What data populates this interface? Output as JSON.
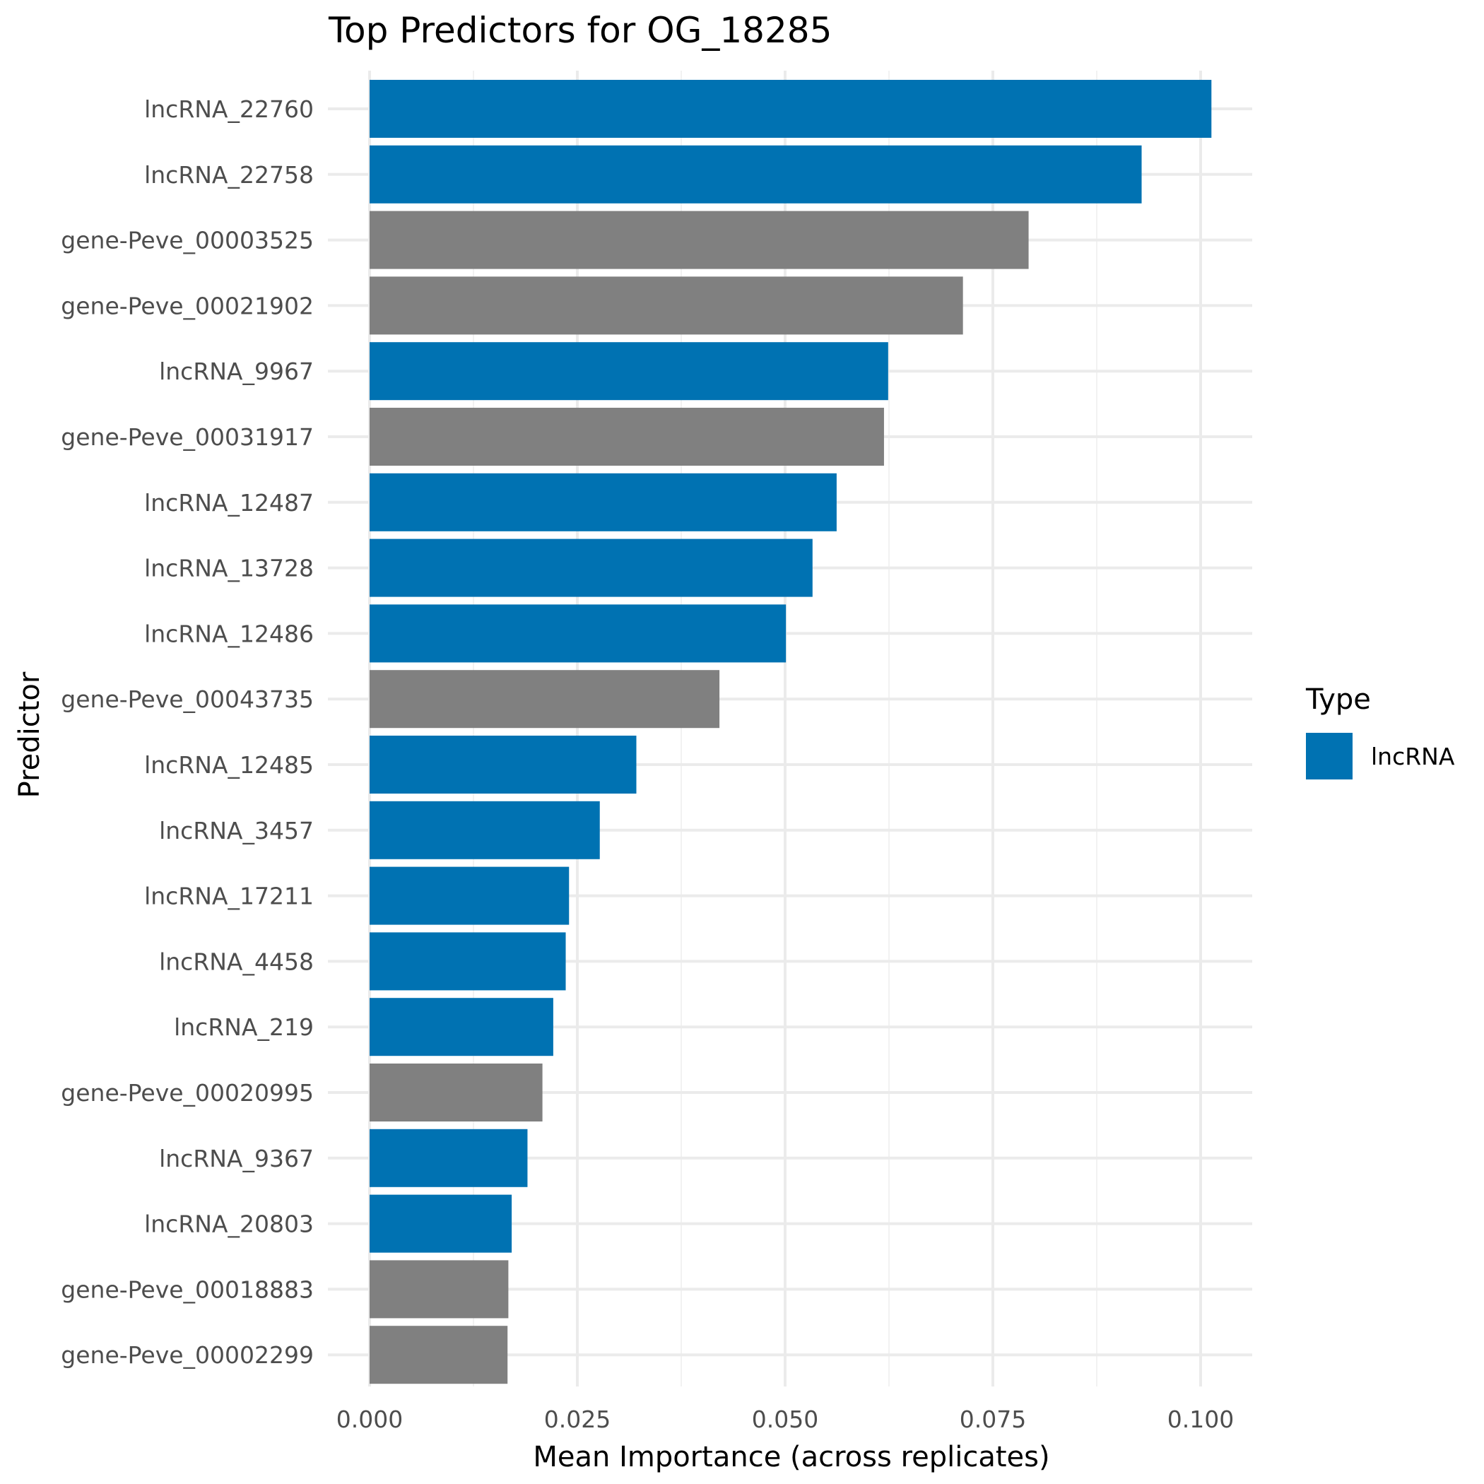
{
  "chart_data": {
    "type": "bar",
    "orientation": "horizontal",
    "title": "Top Predictors for OG_18285",
    "xlabel": "Mean Importance (across replicates)",
    "ylabel": "Predictor",
    "xlim": [
      0,
      0.105
    ],
    "x_ticks": [
      "0.000",
      "0.025",
      "0.050",
      "0.075",
      "0.100"
    ],
    "x_tick_values": [
      0,
      0.025,
      0.05,
      0.075,
      0.1
    ],
    "grid": true,
    "colors": {
      "lncRNA": "#0072B2",
      "gene": "#808080"
    },
    "categories": [
      "lncRNA_22760",
      "lncRNA_22758",
      "gene-Peve_00003525",
      "gene-Peve_00021902",
      "lncRNA_9967",
      "gene-Peve_00031917",
      "lncRNA_12487",
      "lncRNA_13728",
      "lncRNA_12486",
      "gene-Peve_00043735",
      "lncRNA_12485",
      "lncRNA_3457",
      "lncRNA_17211",
      "lncRNA_4458",
      "lncRNA_219",
      "gene-Peve_00020995",
      "lncRNA_9367",
      "lncRNA_20803",
      "gene-Peve_00018883",
      "gene-Peve_00002299"
    ],
    "values": [
      0.1013,
      0.0929,
      0.0793,
      0.0714,
      0.0624,
      0.0619,
      0.0562,
      0.0533,
      0.0501,
      0.0421,
      0.0321,
      0.0277,
      0.024,
      0.0236,
      0.0221,
      0.0208,
      0.019,
      0.0171,
      0.0167,
      0.0166
    ],
    "types": [
      "lncRNA",
      "lncRNA",
      "gene",
      "gene",
      "lncRNA",
      "gene",
      "lncRNA",
      "lncRNA",
      "lncRNA",
      "gene",
      "lncRNA",
      "lncRNA",
      "lncRNA",
      "lncRNA",
      "lncRNA",
      "gene",
      "lncRNA",
      "lncRNA",
      "gene",
      "gene"
    ],
    "legend": {
      "title": "Type",
      "position": "right",
      "entries": [
        {
          "label": "lncRNA",
          "color": "#0072B2"
        }
      ]
    }
  }
}
